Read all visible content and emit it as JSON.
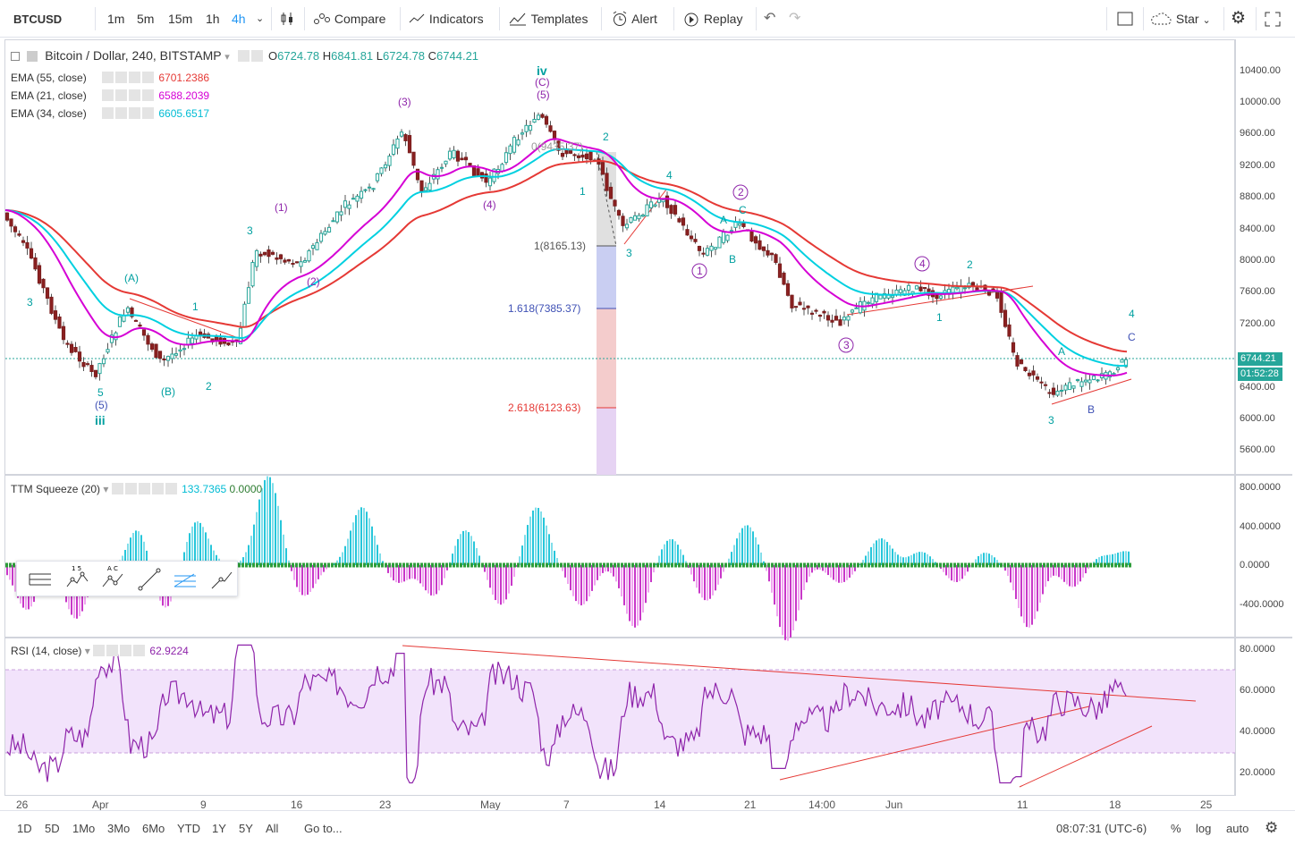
{
  "toolbar": {
    "symbol": "BTCUSD",
    "intervals": [
      "1m",
      "5m",
      "15m",
      "1h",
      "4h"
    ],
    "active_interval": "4h",
    "compare": "Compare",
    "indicators": "Indicators",
    "templates": "Templates",
    "alert": "Alert",
    "replay": "Replay",
    "star": "Star"
  },
  "chart": {
    "title": "Bitcoin / Dollar, 240, BITSTAMP",
    "o_lbl": "O",
    "o": "6724.78",
    "h_lbl": "H",
    "h": "6841.81",
    "l_lbl": "L",
    "l": "6724.78",
    "c_lbl": "C",
    "c": "6744.21",
    "indicators": [
      {
        "name": "EMA (55, close)",
        "value": "6701.2386",
        "color": "#e53935"
      },
      {
        "name": "EMA (21, close)",
        "value": "6588.2039",
        "color": "#d500d5"
      },
      {
        "name": "EMA (34, close)",
        "value": "6605.6517",
        "color": "#00d0e0"
      }
    ],
    "price_ticks": [
      "10400.00",
      "10000.00",
      "9600.00",
      "9200.00",
      "8800.00",
      "8400.00",
      "8000.00",
      "7600.00",
      "7200.00",
      "6400.00",
      "6000.00",
      "5600.00"
    ],
    "last_price": "6744.21",
    "countdown": "01:52:28",
    "fib": [
      "0(9435.37)",
      "1(8165.13)",
      "1.618(7385.37)",
      "2.618(6123.63)"
    ],
    "waves": [
      "iii",
      "iv",
      "(C)",
      "(5)",
      "(3)",
      "(1)",
      "(4)",
      "(2)",
      "(A)",
      "(B)",
      "5",
      "(5)",
      "3",
      "1",
      "2",
      "4",
      "A",
      "B",
      "C"
    ]
  },
  "ttm": {
    "name": "TTM Squeeze (20)",
    "v1": "133.7365",
    "v2": "0.0000",
    "ticks": [
      "800.0000",
      "400.0000",
      "0.0000",
      "-400.0000"
    ]
  },
  "rsi": {
    "name": "RSI (14, close)",
    "value": "62.9224",
    "ticks": [
      "80.0000",
      "60.0000",
      "40.0000",
      "20.0000"
    ]
  },
  "xaxis": [
    "26",
    "Apr",
    "9",
    "16",
    "23",
    "May",
    "7",
    "14",
    "21",
    "14:00",
    "Jun",
    "11",
    "18",
    "25"
  ],
  "bottom": {
    "ranges": [
      "1D",
      "5D",
      "1Mo",
      "3Mo",
      "6Mo",
      "YTD",
      "1Y",
      "5Y",
      "All"
    ],
    "goto": "Go to...",
    "time": "08:07:31 (UTC-6)",
    "pct": "%",
    "log": "log",
    "auto": "auto"
  }
}
